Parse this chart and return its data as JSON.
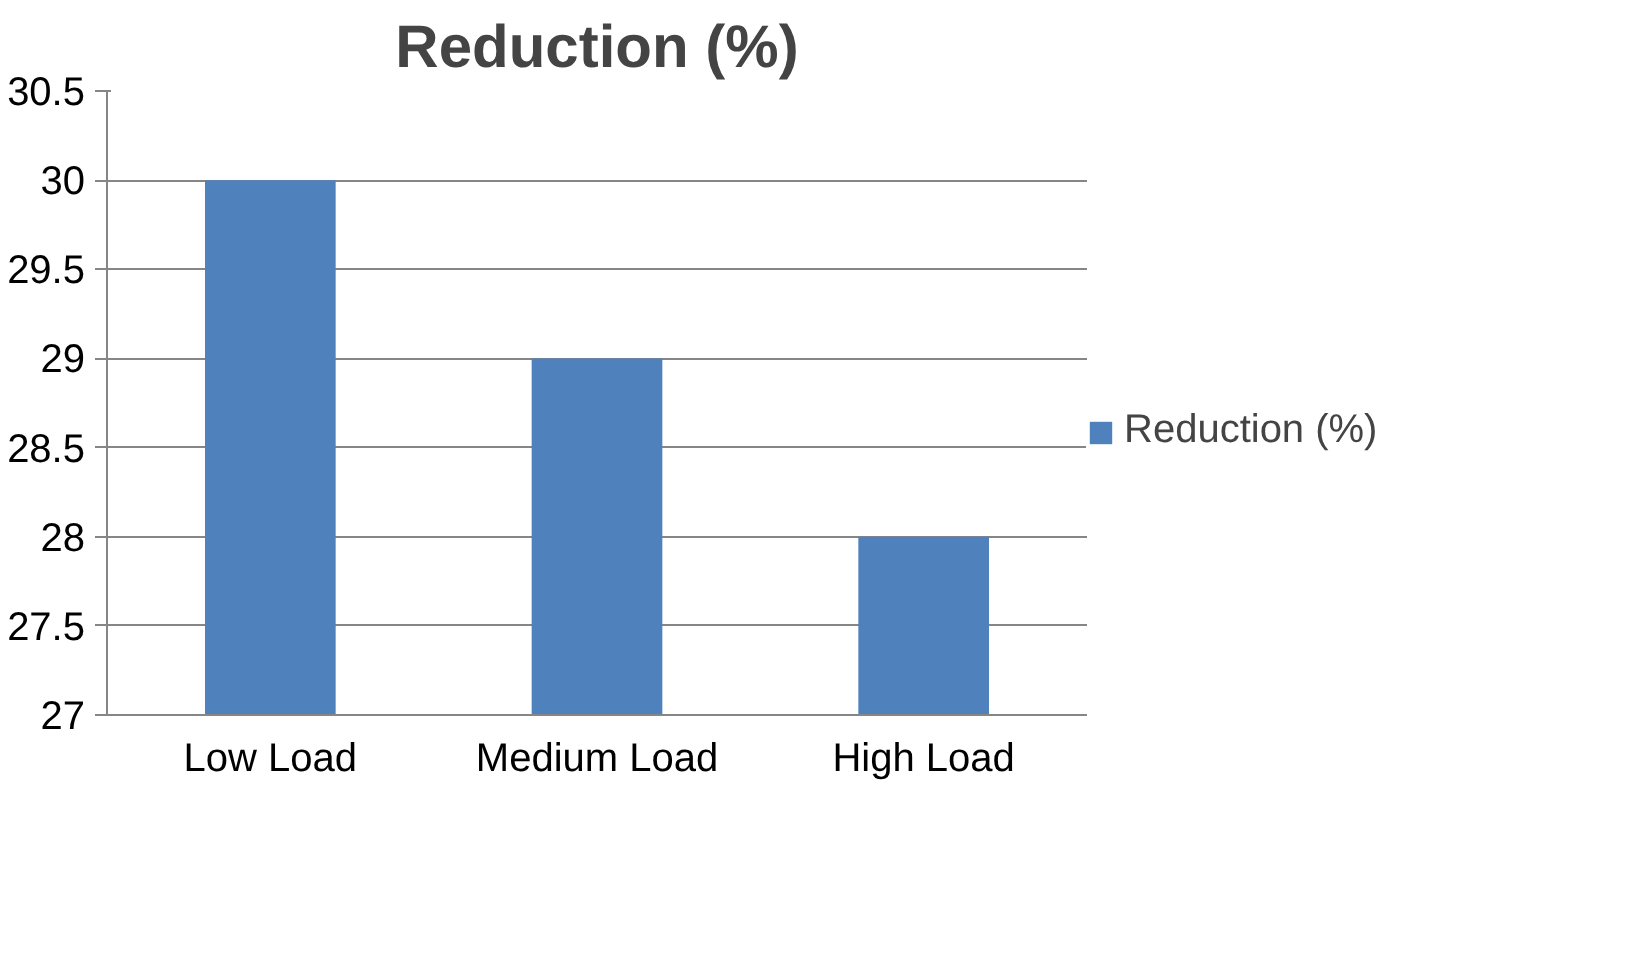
{
  "chart_data": {
    "type": "bar",
    "title": "Reduction (%)",
    "categories": [
      "Low Load",
      "Medium Load",
      "High Load"
    ],
    "series": [
      {
        "name": "Reduction (%)",
        "color": "#4f81bd",
        "values": [
          30,
          29,
          28
        ]
      }
    ],
    "ylim": [
      27,
      30.5
    ],
    "yticks": [
      27,
      27.5,
      28,
      28.5,
      29,
      29.5,
      30,
      30.5
    ],
    "grid": "y",
    "legend": "right"
  }
}
